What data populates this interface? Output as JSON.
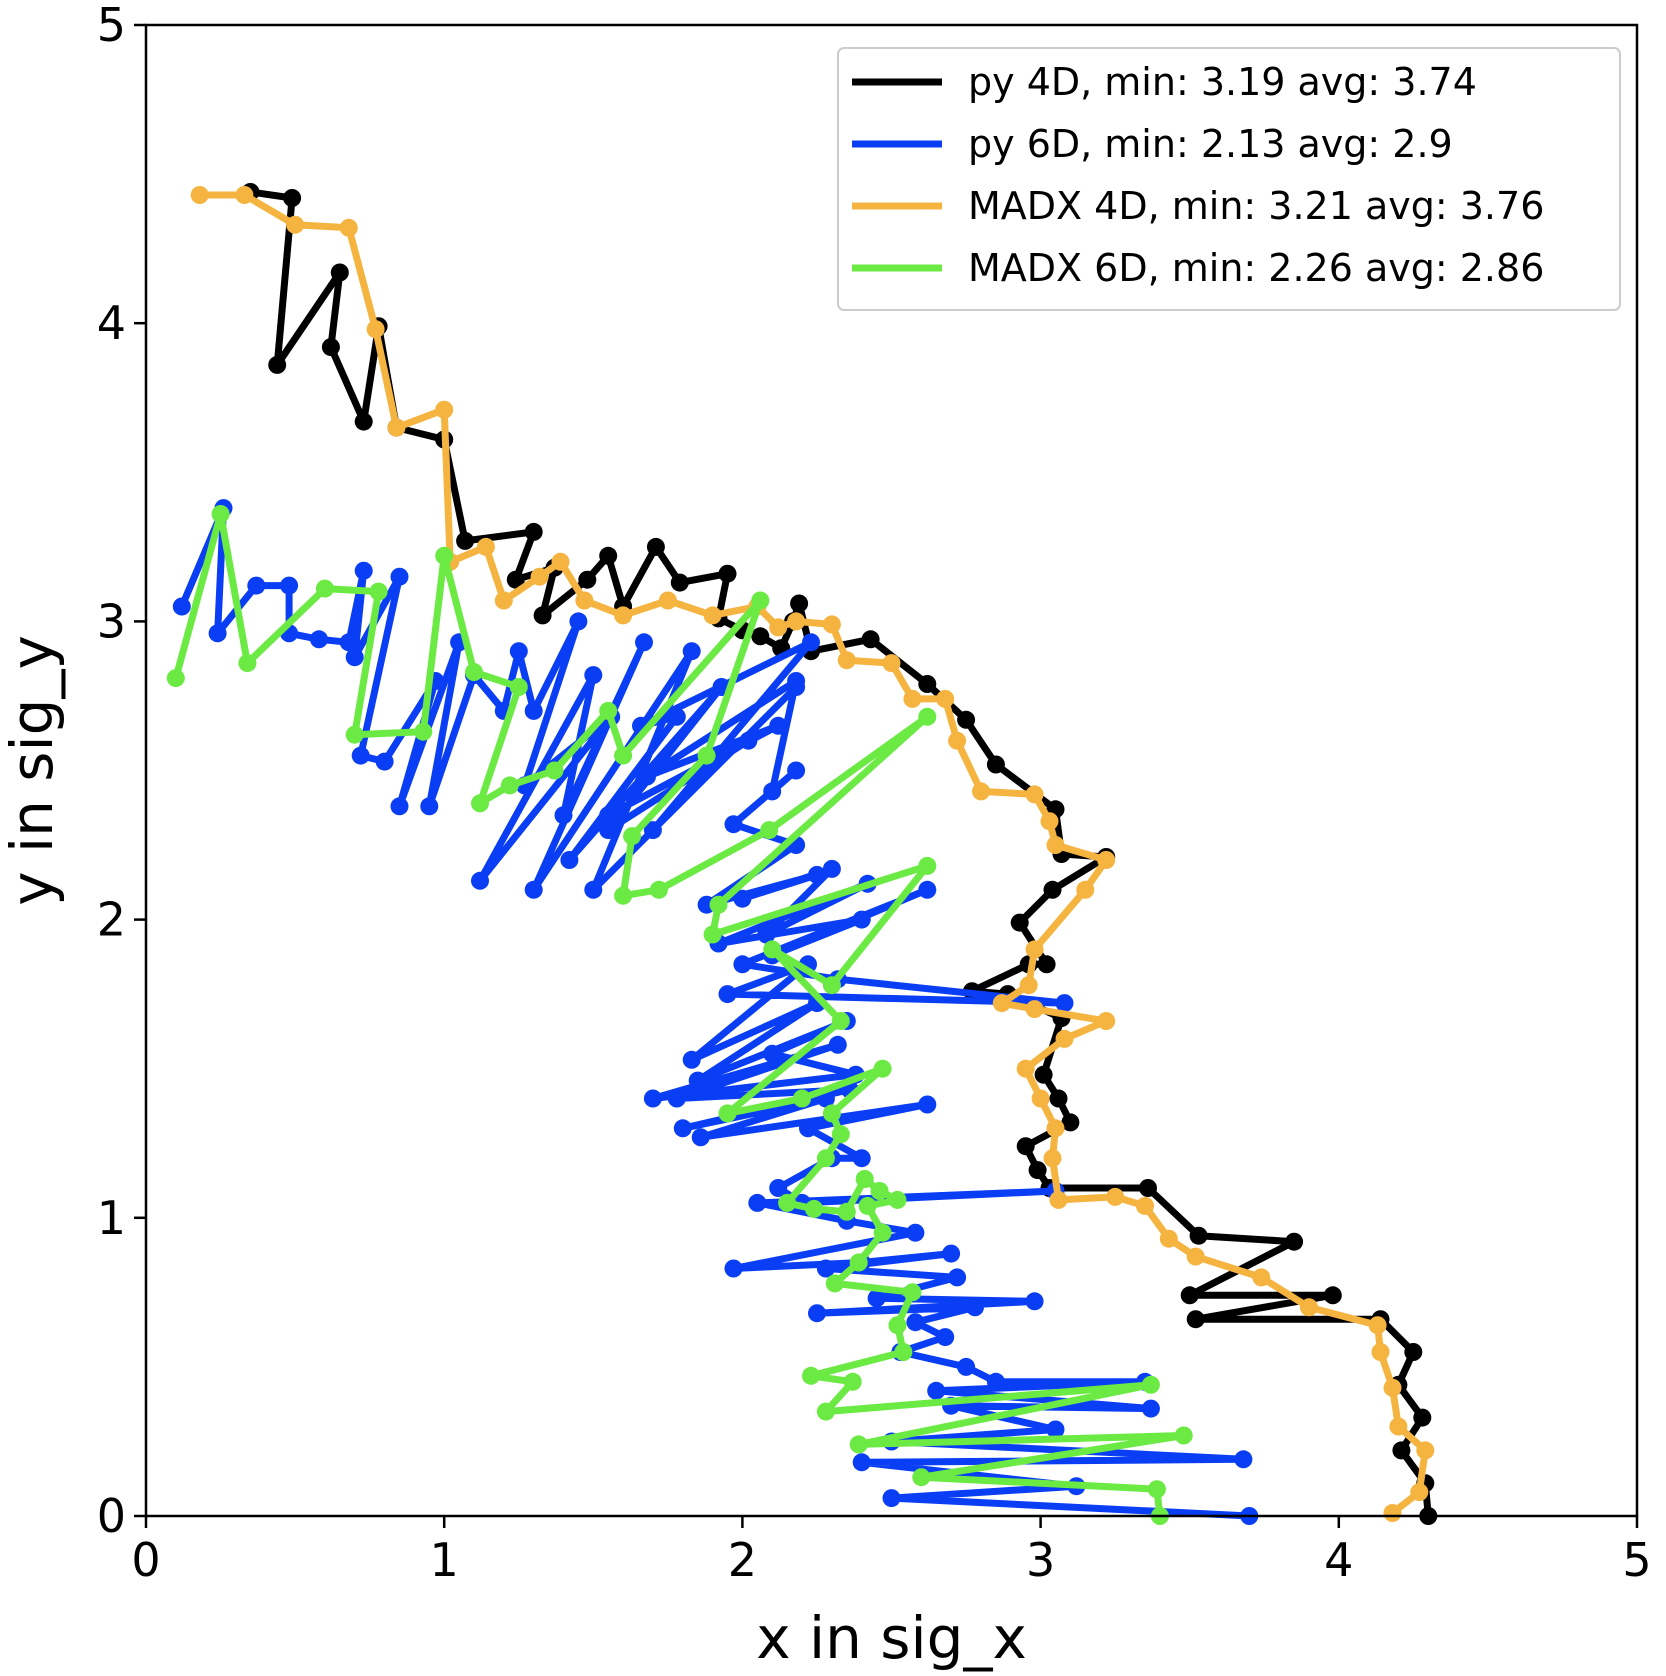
{
  "chart_data": {
    "type": "line",
    "title": "",
    "xlabel": "x in sig_x",
    "ylabel": "y in sig_y",
    "xlim": [
      0,
      5
    ],
    "ylim": [
      0,
      5
    ],
    "xticks": [
      0,
      1,
      2,
      3,
      4,
      5
    ],
    "yticks": [
      0,
      1,
      2,
      3,
      4,
      5
    ],
    "xtick_labels": [
      "0",
      "1",
      "2",
      "3",
      "4",
      "5"
    ],
    "ytick_labels": [
      "0",
      "1",
      "2",
      "3",
      "4",
      "5"
    ],
    "grid": false,
    "legend_position": "top-right",
    "series": [
      {
        "name": "py 4D, min: 3.19 avg: 3.74",
        "color": "#000000",
        "points": [
          [
            4.3,
            0.0
          ],
          [
            4.29,
            0.11
          ],
          [
            4.21,
            0.22
          ],
          [
            4.28,
            0.33
          ],
          [
            4.2,
            0.44
          ],
          [
            4.25,
            0.55
          ],
          [
            4.14,
            0.66
          ],
          [
            3.52,
            0.66
          ],
          [
            3.98,
            0.74
          ],
          [
            3.5,
            0.74
          ],
          [
            3.85,
            0.92
          ],
          [
            3.53,
            0.94
          ],
          [
            3.36,
            1.1
          ],
          [
            3.03,
            1.1
          ],
          [
            2.99,
            1.16
          ],
          [
            2.95,
            1.24
          ],
          [
            3.1,
            1.32
          ],
          [
            3.06,
            1.4
          ],
          [
            3.01,
            1.48
          ],
          [
            3.07,
            1.67
          ],
          [
            2.89,
            1.75
          ],
          [
            2.77,
            1.76
          ],
          [
            2.96,
            1.85
          ],
          [
            3.02,
            1.85
          ],
          [
            2.93,
            1.99
          ],
          [
            3.04,
            2.1
          ],
          [
            3.22,
            2.21
          ],
          [
            3.07,
            2.22
          ],
          [
            3.05,
            2.37
          ],
          [
            2.85,
            2.52
          ],
          [
            2.75,
            2.67
          ],
          [
            2.62,
            2.79
          ],
          [
            2.43,
            2.94
          ],
          [
            2.23,
            2.9
          ],
          [
            2.19,
            3.06
          ],
          [
            2.17,
            3.0
          ],
          [
            2.13,
            2.91
          ],
          [
            2.06,
            2.95
          ],
          [
            2.0,
            2.97
          ],
          [
            1.92,
            3.01
          ],
          [
            1.95,
            3.16
          ],
          [
            1.79,
            3.13
          ],
          [
            1.71,
            3.25
          ],
          [
            1.6,
            3.05
          ],
          [
            1.55,
            3.22
          ],
          [
            1.48,
            3.14
          ],
          [
            1.33,
            3.02
          ],
          [
            1.37,
            3.18
          ],
          [
            1.24,
            3.14
          ],
          [
            1.3,
            3.3
          ],
          [
            1.07,
            3.27
          ],
          [
            1.0,
            3.61
          ],
          [
            0.84,
            3.65
          ],
          [
            0.78,
            3.99
          ],
          [
            0.73,
            3.67
          ],
          [
            0.62,
            3.92
          ],
          [
            0.65,
            4.17
          ],
          [
            0.44,
            3.86
          ],
          [
            0.49,
            4.42
          ],
          [
            0.35,
            4.44
          ]
        ]
      },
      {
        "name": "py 6D, min: 2.13 avg: 2.9",
        "color": "#0a3ef5",
        "points": [
          [
            3.7,
            0.0
          ],
          [
            2.5,
            0.06
          ],
          [
            3.12,
            0.1
          ],
          [
            2.4,
            0.18
          ],
          [
            3.68,
            0.19
          ],
          [
            2.5,
            0.25
          ],
          [
            3.05,
            0.29
          ],
          [
            2.7,
            0.37
          ],
          [
            3.37,
            0.36
          ],
          [
            2.65,
            0.42
          ],
          [
            3.35,
            0.45
          ],
          [
            2.85,
            0.45
          ],
          [
            2.75,
            0.5
          ],
          [
            2.53,
            0.55
          ],
          [
            2.68,
            0.6
          ],
          [
            2.58,
            0.65
          ],
          [
            2.78,
            0.7
          ],
          [
            2.25,
            0.68
          ],
          [
            2.98,
            0.72
          ],
          [
            2.45,
            0.73
          ],
          [
            2.72,
            0.8
          ],
          [
            2.28,
            0.83
          ],
          [
            2.7,
            0.88
          ],
          [
            2.4,
            0.85
          ],
          [
            1.97,
            0.83
          ],
          [
            2.58,
            0.95
          ],
          [
            2.35,
            0.99
          ],
          [
            2.05,
            1.05
          ],
          [
            3.05,
            1.09
          ],
          [
            2.2,
            1.05
          ],
          [
            2.12,
            1.1
          ],
          [
            2.3,
            1.2
          ],
          [
            2.4,
            1.2
          ],
          [
            2.22,
            1.3
          ],
          [
            2.62,
            1.38
          ],
          [
            1.86,
            1.27
          ],
          [
            2.28,
            1.4
          ],
          [
            1.8,
            1.3
          ],
          [
            2.36,
            1.43
          ],
          [
            1.78,
            1.4
          ],
          [
            2.32,
            1.58
          ],
          [
            1.7,
            1.4
          ],
          [
            2.38,
            1.48
          ],
          [
            2.1,
            1.55
          ],
          [
            2.35,
            1.66
          ],
          [
            1.85,
            1.46
          ],
          [
            2.25,
            1.72
          ],
          [
            1.83,
            1.53
          ],
          [
            2.22,
            1.85
          ],
          [
            1.95,
            1.75
          ],
          [
            3.08,
            1.72
          ],
          [
            2.32,
            1.8
          ],
          [
            2.0,
            1.85
          ],
          [
            2.62,
            2.1
          ],
          [
            2.1,
            1.88
          ],
          [
            2.4,
            2.0
          ],
          [
            1.92,
            1.92
          ],
          [
            2.42,
            2.12
          ],
          [
            2.08,
            1.95
          ],
          [
            2.3,
            2.17
          ],
          [
            2.0,
            2.07
          ],
          [
            2.25,
            2.15
          ],
          [
            1.88,
            2.05
          ],
          [
            2.18,
            2.25
          ],
          [
            1.97,
            2.32
          ],
          [
            2.18,
            2.5
          ],
          [
            2.1,
            2.43
          ],
          [
            2.18,
            2.8
          ],
          [
            1.68,
            2.48
          ],
          [
            2.12,
            2.65
          ],
          [
            1.55,
            2.35
          ],
          [
            2.02,
            2.6
          ],
          [
            1.55,
            2.3
          ],
          [
            1.93,
            2.78
          ],
          [
            1.42,
            2.2
          ],
          [
            1.78,
            2.68
          ],
          [
            1.66,
            2.65
          ],
          [
            2.23,
            2.93
          ],
          [
            1.7,
            2.3
          ],
          [
            2.18,
            2.78
          ],
          [
            1.5,
            2.1
          ],
          [
            1.83,
            2.9
          ],
          [
            1.3,
            2.1
          ],
          [
            1.67,
            2.93
          ],
          [
            1.4,
            2.35
          ],
          [
            1.5,
            2.82
          ],
          [
            1.12,
            2.13
          ],
          [
            1.56,
            2.68
          ],
          [
            1.27,
            2.45
          ],
          [
            1.45,
            3.0
          ],
          [
            1.3,
            2.7
          ],
          [
            1.25,
            2.9
          ],
          [
            1.2,
            2.7
          ],
          [
            1.1,
            2.82
          ],
          [
            0.95,
            2.38
          ],
          [
            1.05,
            2.93
          ],
          [
            0.85,
            2.38
          ],
          [
            0.97,
            2.8
          ],
          [
            0.8,
            2.53
          ],
          [
            0.72,
            2.55
          ],
          [
            0.85,
            3.15
          ],
          [
            0.7,
            2.88
          ],
          [
            0.73,
            3.17
          ],
          [
            0.68,
            2.93
          ],
          [
            0.58,
            2.94
          ],
          [
            0.48,
            2.96
          ],
          [
            0.48,
            3.12
          ],
          [
            0.37,
            3.12
          ],
          [
            0.24,
            2.96
          ],
          [
            0.26,
            3.38
          ],
          [
            0.12,
            3.05
          ]
        ]
      },
      {
        "name": "MADX 4D, min: 3.21 avg: 3.76",
        "color": "#f5b440",
        "points": [
          [
            4.18,
            0.01
          ],
          [
            4.27,
            0.08
          ],
          [
            4.29,
            0.22
          ],
          [
            4.2,
            0.3
          ],
          [
            4.18,
            0.43
          ],
          [
            4.14,
            0.55
          ],
          [
            4.13,
            0.64
          ],
          [
            3.9,
            0.7
          ],
          [
            3.74,
            0.8
          ],
          [
            3.52,
            0.87
          ],
          [
            3.43,
            0.93
          ],
          [
            3.35,
            1.04
          ],
          [
            3.25,
            1.07
          ],
          [
            3.06,
            1.06
          ],
          [
            3.04,
            1.2
          ],
          [
            3.05,
            1.3
          ],
          [
            3.0,
            1.4
          ],
          [
            2.95,
            1.5
          ],
          [
            3.08,
            1.6
          ],
          [
            3.22,
            1.66
          ],
          [
            2.98,
            1.7
          ],
          [
            2.87,
            1.72
          ],
          [
            2.96,
            1.78
          ],
          [
            2.98,
            1.9
          ],
          [
            3.15,
            2.1
          ],
          [
            3.22,
            2.2
          ],
          [
            3.05,
            2.25
          ],
          [
            3.03,
            2.33
          ],
          [
            2.98,
            2.42
          ],
          [
            2.8,
            2.43
          ],
          [
            2.72,
            2.6
          ],
          [
            2.68,
            2.74
          ],
          [
            2.57,
            2.74
          ],
          [
            2.5,
            2.86
          ],
          [
            2.35,
            2.87
          ],
          [
            2.3,
            2.99
          ],
          [
            2.18,
            3.0
          ],
          [
            2.12,
            2.98
          ],
          [
            2.05,
            3.05
          ],
          [
            1.9,
            3.02
          ],
          [
            1.75,
            3.07
          ],
          [
            1.6,
            3.02
          ],
          [
            1.47,
            3.07
          ],
          [
            1.39,
            3.2
          ],
          [
            1.32,
            3.15
          ],
          [
            1.2,
            3.07
          ],
          [
            1.14,
            3.25
          ],
          [
            1.02,
            3.2
          ],
          [
            1.0,
            3.71
          ],
          [
            0.84,
            3.65
          ],
          [
            0.77,
            3.98
          ],
          [
            0.68,
            4.32
          ],
          [
            0.5,
            4.33
          ],
          [
            0.33,
            4.43
          ],
          [
            0.18,
            4.43
          ]
        ]
      },
      {
        "name": "MADX 6D, min: 2.26 avg: 2.86",
        "color": "#6bea43",
        "points": [
          [
            3.4,
            0.0
          ],
          [
            3.39,
            0.09
          ],
          [
            2.6,
            0.13
          ],
          [
            3.48,
            0.27
          ],
          [
            2.39,
            0.24
          ],
          [
            3.37,
            0.44
          ],
          [
            2.28,
            0.35
          ],
          [
            2.37,
            0.45
          ],
          [
            2.23,
            0.47
          ],
          [
            2.54,
            0.55
          ],
          [
            2.52,
            0.64
          ],
          [
            2.57,
            0.75
          ],
          [
            2.31,
            0.78
          ],
          [
            2.39,
            0.85
          ],
          [
            2.47,
            0.95
          ],
          [
            2.42,
            1.04
          ],
          [
            2.52,
            1.06
          ],
          [
            2.46,
            1.09
          ],
          [
            2.41,
            1.13
          ],
          [
            2.35,
            1.02
          ],
          [
            2.24,
            1.03
          ],
          [
            2.15,
            1.05
          ],
          [
            2.28,
            1.2
          ],
          [
            2.33,
            1.28
          ],
          [
            2.3,
            1.35
          ],
          [
            2.47,
            1.5
          ],
          [
            2.2,
            1.4
          ],
          [
            1.95,
            1.35
          ],
          [
            2.33,
            1.66
          ],
          [
            2.1,
            1.9
          ],
          [
            2.3,
            1.78
          ],
          [
            2.62,
            2.18
          ],
          [
            1.9,
            1.95
          ],
          [
            1.92,
            2.05
          ],
          [
            2.62,
            2.68
          ],
          [
            2.09,
            2.3
          ],
          [
            1.72,
            2.1
          ],
          [
            1.6,
            2.08
          ],
          [
            1.63,
            2.28
          ],
          [
            1.88,
            2.55
          ],
          [
            2.06,
            3.07
          ],
          [
            1.6,
            2.55
          ],
          [
            1.55,
            2.7
          ],
          [
            1.37,
            2.5
          ],
          [
            1.22,
            2.45
          ],
          [
            1.12,
            2.39
          ],
          [
            1.25,
            2.78
          ],
          [
            1.1,
            2.83
          ],
          [
            1.0,
            3.22
          ],
          [
            0.93,
            2.63
          ],
          [
            0.7,
            2.62
          ],
          [
            0.78,
            3.1
          ],
          [
            0.6,
            3.11
          ],
          [
            0.34,
            2.86
          ],
          [
            0.25,
            3.36
          ],
          [
            0.1,
            2.81
          ]
        ]
      }
    ]
  }
}
